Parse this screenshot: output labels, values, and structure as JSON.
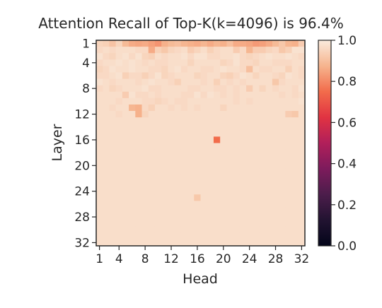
{
  "chart_data": {
    "type": "heatmap",
    "title": "Attention Recall of Top-K(k=4096) is 96.4%",
    "xlabel": "Head",
    "ylabel": "Layer",
    "x_ticks": [
      "1",
      "4",
      "8",
      "12",
      "16",
      "20",
      "24",
      "28",
      "32"
    ],
    "y_ticks": [
      "1",
      "4",
      "8",
      "12",
      "16",
      "20",
      "24",
      "28",
      "32"
    ],
    "rows": 32,
    "cols": 32,
    "value_range": [
      0.0,
      1.0
    ],
    "colormap": "rocket",
    "colorbar_ticks": [
      "0.0",
      "0.2",
      "0.4",
      "0.6",
      "0.8",
      "1.0"
    ],
    "colorbar_tick_values": [
      0.0,
      0.2,
      0.4,
      0.6,
      0.8,
      1.0
    ],
    "values": [
      [
        0.95,
        0.94,
        0.91,
        0.95,
        0.89,
        0.86,
        0.85,
        0.86,
        0.84,
        0.82,
        0.87,
        0.89,
        0.9,
        0.88,
        0.87,
        0.86,
        0.88,
        0.86,
        0.88,
        0.87,
        0.9,
        0.86,
        0.86,
        0.85,
        0.83,
        0.84,
        0.86,
        0.89,
        0.92,
        0.88,
        0.87,
        0.93
      ],
      [
        0.96,
        0.97,
        0.96,
        0.97,
        0.97,
        0.97,
        0.96,
        0.96,
        0.86,
        0.94,
        0.92,
        0.95,
        0.96,
        0.97,
        0.93,
        0.95,
        0.97,
        0.94,
        0.96,
        0.97,
        0.97,
        0.93,
        0.96,
        0.88,
        0.93,
        0.93,
        0.95,
        0.96,
        0.92,
        0.94,
        0.98,
        0.98
      ],
      [
        0.98,
        0.96,
        0.95,
        0.97,
        0.98,
        0.96,
        0.98,
        0.95,
        0.94,
        0.97,
        0.96,
        0.97,
        0.97,
        0.98,
        0.96,
        0.98,
        0.98,
        0.96,
        0.96,
        0.97,
        0.97,
        0.98,
        0.96,
        0.95,
        0.96,
        0.97,
        0.98,
        0.97,
        0.97,
        0.98,
        0.97,
        0.96
      ],
      [
        0.96,
        0.97,
        0.97,
        0.98,
        0.97,
        0.98,
        0.97,
        0.96,
        0.97,
        0.96,
        0.96,
        0.97,
        0.97,
        0.97,
        0.95,
        0.97,
        0.97,
        0.97,
        0.97,
        0.95,
        0.96,
        0.98,
        0.96,
        0.96,
        0.95,
        0.97,
        0.97,
        0.96,
        0.96,
        0.96,
        0.97,
        0.97
      ],
      [
        0.95,
        0.96,
        0.98,
        0.97,
        0.97,
        0.98,
        0.97,
        0.97,
        0.96,
        0.96,
        0.95,
        0.97,
        0.98,
        0.96,
        0.97,
        0.97,
        0.96,
        0.96,
        0.97,
        0.98,
        0.97,
        0.97,
        0.96,
        0.9,
        0.97,
        0.96,
        0.96,
        0.97,
        0.97,
        0.94,
        0.97,
        0.96
      ],
      [
        0.96,
        0.96,
        0.97,
        0.98,
        0.94,
        0.96,
        0.96,
        0.94,
        0.96,
        0.98,
        0.95,
        0.96,
        0.97,
        0.97,
        0.97,
        0.95,
        0.96,
        0.97,
        0.97,
        0.95,
        0.94,
        0.96,
        0.98,
        0.97,
        0.95,
        0.97,
        0.97,
        0.96,
        0.95,
        0.98,
        0.97,
        0.96
      ],
      [
        0.98,
        0.97,
        0.96,
        0.97,
        0.97,
        0.97,
        0.96,
        0.97,
        0.98,
        0.97,
        0.97,
        0.96,
        0.94,
        0.97,
        0.97,
        0.97,
        0.96,
        0.97,
        0.94,
        0.97,
        0.96,
        0.97,
        0.96,
        0.97,
        0.97,
        0.97,
        0.97,
        0.92,
        0.96,
        0.97,
        0.97,
        0.97
      ],
      [
        0.96,
        0.97,
        0.95,
        0.96,
        0.97,
        0.97,
        0.97,
        0.98,
        0.96,
        0.96,
        0.97,
        0.97,
        0.97,
        0.97,
        0.96,
        0.96,
        0.97,
        0.97,
        0.96,
        0.96,
        0.97,
        0.96,
        0.97,
        0.93,
        0.97,
        0.95,
        0.97,
        0.96,
        0.97,
        0.97,
        0.96,
        0.98
      ],
      [
        0.97,
        0.97,
        0.97,
        0.97,
        0.93,
        0.98,
        0.96,
        0.96,
        0.97,
        0.96,
        0.97,
        0.97,
        0.97,
        0.96,
        0.96,
        0.98,
        0.96,
        0.98,
        0.97,
        0.96,
        0.97,
        0.96,
        0.97,
        0.97,
        0.97,
        0.97,
        0.97,
        0.97,
        0.96,
        0.97,
        0.96,
        0.97
      ],
      [
        0.97,
        0.97,
        0.97,
        0.96,
        0.97,
        0.97,
        0.97,
        0.96,
        0.96,
        0.95,
        0.96,
        0.97,
        0.96,
        0.96,
        0.97,
        0.97,
        0.97,
        0.97,
        0.97,
        0.97,
        0.97,
        0.96,
        0.97,
        0.96,
        0.97,
        0.97,
        0.97,
        0.97,
        0.97,
        0.97,
        0.97,
        0.98
      ],
      [
        0.97,
        0.97,
        0.96,
        0.97,
        0.97,
        0.88,
        0.87,
        0.96,
        0.94,
        0.97,
        0.97,
        0.96,
        0.97,
        0.96,
        0.97,
        0.96,
        0.97,
        0.97,
        0.97,
        0.95,
        0.97,
        0.97,
        0.97,
        0.97,
        0.97,
        0.97,
        0.97,
        0.97,
        0.97,
        0.97,
        0.97,
        0.97
      ],
      [
        0.97,
        0.97,
        0.97,
        0.96,
        0.97,
        0.97,
        0.87,
        0.95,
        0.97,
        0.97,
        0.97,
        0.97,
        0.97,
        0.97,
        0.97,
        0.97,
        0.97,
        0.97,
        0.97,
        0.97,
        0.97,
        0.97,
        0.97,
        0.97,
        0.97,
        0.97,
        0.97,
        0.97,
        0.97,
        0.93,
        0.92,
        0.97
      ],
      [
        0.97,
        0.97,
        0.97,
        0.97,
        0.97,
        0.97,
        0.97,
        0.97,
        0.97,
        0.97,
        0.97,
        0.97,
        0.97,
        0.97,
        0.97,
        0.97,
        0.97,
        0.97,
        0.97,
        0.97,
        0.97,
        0.97,
        0.97,
        0.97,
        0.97,
        0.97,
        0.97,
        0.97,
        0.97,
        0.97,
        0.97,
        0.97
      ],
      [
        0.97,
        0.97,
        0.97,
        0.97,
        0.97,
        0.97,
        0.97,
        0.97,
        0.97,
        0.97,
        0.97,
        0.97,
        0.97,
        0.97,
        0.97,
        0.97,
        0.97,
        0.97,
        0.97,
        0.97,
        0.97,
        0.97,
        0.97,
        0.97,
        0.97,
        0.97,
        0.97,
        0.97,
        0.97,
        0.97,
        0.97,
        0.97
      ],
      [
        0.97,
        0.97,
        0.97,
        0.97,
        0.97,
        0.97,
        0.97,
        0.97,
        0.97,
        0.97,
        0.97,
        0.97,
        0.97,
        0.97,
        0.97,
        0.97,
        0.97,
        0.97,
        0.97,
        0.97,
        0.97,
        0.97,
        0.97,
        0.97,
        0.97,
        0.97,
        0.97,
        0.97,
        0.97,
        0.97,
        0.97,
        0.97
      ],
      [
        0.97,
        0.97,
        0.97,
        0.97,
        0.97,
        0.97,
        0.97,
        0.97,
        0.97,
        0.97,
        0.97,
        0.97,
        0.97,
        0.97,
        0.97,
        0.97,
        0.97,
        0.97,
        0.75,
        0.97,
        0.97,
        0.97,
        0.97,
        0.97,
        0.97,
        0.97,
        0.97,
        0.97,
        0.97,
        0.97,
        0.97,
        0.97
      ],
      [
        0.97,
        0.97,
        0.97,
        0.97,
        0.97,
        0.97,
        0.97,
        0.97,
        0.97,
        0.97,
        0.97,
        0.97,
        0.97,
        0.97,
        0.97,
        0.97,
        0.97,
        0.97,
        0.97,
        0.97,
        0.97,
        0.97,
        0.97,
        0.97,
        0.97,
        0.97,
        0.97,
        0.97,
        0.97,
        0.97,
        0.97,
        0.97
      ],
      [
        0.97,
        0.97,
        0.97,
        0.97,
        0.97,
        0.97,
        0.97,
        0.97,
        0.97,
        0.97,
        0.97,
        0.97,
        0.97,
        0.97,
        0.97,
        0.97,
        0.97,
        0.97,
        0.97,
        0.97,
        0.97,
        0.97,
        0.97,
        0.97,
        0.97,
        0.97,
        0.97,
        0.97,
        0.97,
        0.97,
        0.97,
        0.97
      ],
      [
        0.97,
        0.97,
        0.97,
        0.97,
        0.97,
        0.97,
        0.97,
        0.97,
        0.97,
        0.97,
        0.97,
        0.97,
        0.97,
        0.97,
        0.97,
        0.97,
        0.97,
        0.97,
        0.97,
        0.97,
        0.97,
        0.97,
        0.97,
        0.97,
        0.97,
        0.97,
        0.97,
        0.97,
        0.97,
        0.97,
        0.97,
        0.97
      ],
      [
        0.97,
        0.97,
        0.97,
        0.97,
        0.97,
        0.97,
        0.97,
        0.97,
        0.97,
        0.97,
        0.97,
        0.97,
        0.97,
        0.97,
        0.97,
        0.97,
        0.97,
        0.97,
        0.97,
        0.97,
        0.97,
        0.97,
        0.97,
        0.97,
        0.97,
        0.97,
        0.97,
        0.97,
        0.97,
        0.97,
        0.97,
        0.97
      ],
      [
        0.97,
        0.97,
        0.97,
        0.97,
        0.97,
        0.97,
        0.97,
        0.97,
        0.97,
        0.97,
        0.97,
        0.97,
        0.97,
        0.97,
        0.97,
        0.97,
        0.97,
        0.97,
        0.97,
        0.97,
        0.97,
        0.97,
        0.97,
        0.97,
        0.97,
        0.97,
        0.97,
        0.97,
        0.97,
        0.97,
        0.97,
        0.97
      ],
      [
        0.97,
        0.97,
        0.97,
        0.97,
        0.97,
        0.97,
        0.97,
        0.97,
        0.97,
        0.97,
        0.97,
        0.97,
        0.97,
        0.97,
        0.97,
        0.97,
        0.97,
        0.97,
        0.97,
        0.97,
        0.97,
        0.97,
        0.97,
        0.97,
        0.97,
        0.97,
        0.97,
        0.97,
        0.97,
        0.97,
        0.97,
        0.97
      ],
      [
        0.97,
        0.97,
        0.97,
        0.97,
        0.97,
        0.97,
        0.97,
        0.97,
        0.97,
        0.97,
        0.97,
        0.97,
        0.97,
        0.97,
        0.97,
        0.97,
        0.97,
        0.97,
        0.97,
        0.97,
        0.97,
        0.97,
        0.97,
        0.97,
        0.97,
        0.97,
        0.97,
        0.97,
        0.97,
        0.97,
        0.97,
        0.97
      ],
      [
        0.97,
        0.97,
        0.97,
        0.97,
        0.97,
        0.97,
        0.97,
        0.97,
        0.97,
        0.97,
        0.97,
        0.97,
        0.97,
        0.97,
        0.97,
        0.97,
        0.97,
        0.97,
        0.97,
        0.97,
        0.97,
        0.97,
        0.97,
        0.97,
        0.97,
        0.97,
        0.97,
        0.97,
        0.97,
        0.97,
        0.97,
        0.97
      ],
      [
        0.97,
        0.97,
        0.97,
        0.97,
        0.97,
        0.97,
        0.97,
        0.97,
        0.97,
        0.97,
        0.97,
        0.97,
        0.97,
        0.97,
        0.97,
        0.92,
        0.97,
        0.97,
        0.97,
        0.97,
        0.97,
        0.97,
        0.97,
        0.97,
        0.97,
        0.97,
        0.97,
        0.97,
        0.97,
        0.97,
        0.97,
        0.97
      ],
      [
        0.97,
        0.97,
        0.97,
        0.97,
        0.97,
        0.97,
        0.97,
        0.97,
        0.97,
        0.97,
        0.97,
        0.97,
        0.97,
        0.97,
        0.97,
        0.97,
        0.97,
        0.97,
        0.97,
        0.97,
        0.97,
        0.97,
        0.97,
        0.97,
        0.97,
        0.97,
        0.97,
        0.97,
        0.97,
        0.97,
        0.97,
        0.97
      ],
      [
        0.97,
        0.97,
        0.97,
        0.97,
        0.97,
        0.97,
        0.97,
        0.97,
        0.97,
        0.97,
        0.97,
        0.97,
        0.97,
        0.97,
        0.97,
        0.97,
        0.97,
        0.97,
        0.97,
        0.97,
        0.97,
        0.97,
        0.97,
        0.97,
        0.97,
        0.97,
        0.97,
        0.97,
        0.97,
        0.97,
        0.97,
        0.97
      ],
      [
        0.97,
        0.97,
        0.97,
        0.97,
        0.97,
        0.97,
        0.97,
        0.97,
        0.97,
        0.97,
        0.97,
        0.97,
        0.97,
        0.97,
        0.97,
        0.97,
        0.97,
        0.97,
        0.97,
        0.97,
        0.97,
        0.97,
        0.97,
        0.97,
        0.97,
        0.97,
        0.97,
        0.97,
        0.97,
        0.97,
        0.97,
        0.97
      ],
      [
        0.97,
        0.97,
        0.97,
        0.97,
        0.97,
        0.97,
        0.97,
        0.97,
        0.97,
        0.97,
        0.97,
        0.97,
        0.97,
        0.97,
        0.97,
        0.97,
        0.97,
        0.97,
        0.97,
        0.97,
        0.97,
        0.97,
        0.97,
        0.97,
        0.97,
        0.97,
        0.97,
        0.97,
        0.97,
        0.97,
        0.97,
        0.97
      ],
      [
        0.97,
        0.97,
        0.97,
        0.97,
        0.97,
        0.97,
        0.97,
        0.97,
        0.97,
        0.97,
        0.97,
        0.97,
        0.97,
        0.97,
        0.97,
        0.97,
        0.97,
        0.97,
        0.97,
        0.97,
        0.97,
        0.97,
        0.97,
        0.97,
        0.97,
        0.97,
        0.97,
        0.97,
        0.97,
        0.97,
        0.97,
        0.97
      ],
      [
        0.97,
        0.97,
        0.97,
        0.97,
        0.97,
        0.97,
        0.97,
        0.97,
        0.97,
        0.97,
        0.97,
        0.97,
        0.97,
        0.97,
        0.97,
        0.97,
        0.97,
        0.97,
        0.97,
        0.97,
        0.97,
        0.97,
        0.97,
        0.97,
        0.97,
        0.97,
        0.97,
        0.97,
        0.97,
        0.97,
        0.97,
        0.97
      ],
      [
        0.97,
        0.97,
        0.97,
        0.97,
        0.97,
        0.97,
        0.97,
        0.97,
        0.97,
        0.97,
        0.97,
        0.97,
        0.97,
        0.97,
        0.97,
        0.97,
        0.97,
        0.97,
        0.97,
        0.97,
        0.97,
        0.97,
        0.97,
        0.97,
        0.97,
        0.97,
        0.97,
        0.97,
        0.97,
        0.97,
        0.97,
        0.97
      ]
    ]
  }
}
